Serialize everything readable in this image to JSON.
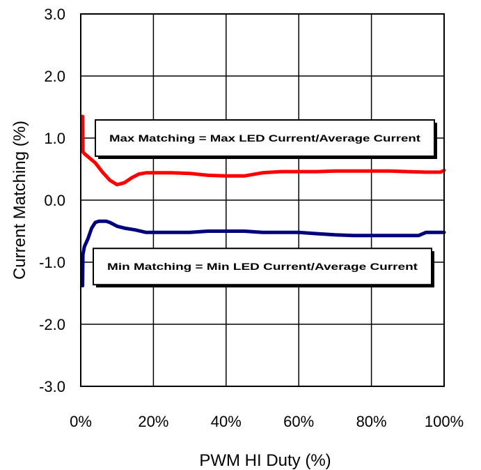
{
  "chart_data": {
    "type": "line",
    "xlabel": "PWM HI Duty (%)",
    "ylabel": "Current Matching (%)",
    "xlim": [
      0,
      100
    ],
    "ylim": [
      -3,
      3
    ],
    "x_ticks": [
      {
        "value": 0,
        "label": "0%"
      },
      {
        "value": 20,
        "label": "20%"
      },
      {
        "value": 40,
        "label": "40%"
      },
      {
        "value": 60,
        "label": "60%"
      },
      {
        "value": 80,
        "label": "80%"
      },
      {
        "value": 100,
        "label": "100%"
      }
    ],
    "y_ticks": [
      {
        "value": 3,
        "label": "3.0"
      },
      {
        "value": 2,
        "label": "2.0"
      },
      {
        "value": 1,
        "label": "1.0"
      },
      {
        "value": 0,
        "label": "0.0"
      },
      {
        "value": -1,
        "label": "-1.0"
      },
      {
        "value": -2,
        "label": "-2.0"
      },
      {
        "value": -3,
        "label": "-3.0"
      }
    ],
    "grid": true,
    "series": [
      {
        "color": "#ff0000",
        "x": [
          0.5,
          0.6,
          1,
          2,
          4,
          6,
          8,
          10,
          12,
          14,
          16,
          18,
          20,
          25,
          30,
          35,
          40,
          45,
          50,
          55,
          60,
          65,
          70,
          75,
          80,
          85,
          90,
          95,
          99,
          100
        ],
        "y": [
          1.35,
          0.78,
          0.75,
          0.7,
          0.6,
          0.45,
          0.32,
          0.25,
          0.28,
          0.36,
          0.42,
          0.44,
          0.44,
          0.44,
          0.43,
          0.4,
          0.39,
          0.39,
          0.44,
          0.46,
          0.46,
          0.46,
          0.47,
          0.47,
          0.47,
          0.47,
          0.46,
          0.45,
          0.45,
          0.48
        ]
      },
      {
        "color": "#00007f",
        "x": [
          0.5,
          0.6,
          1,
          2,
          3,
          4,
          5,
          6,
          7,
          8,
          10,
          12,
          15,
          18,
          20,
          25,
          30,
          35,
          40,
          45,
          50,
          55,
          60,
          65,
          70,
          75,
          80,
          85,
          90,
          93,
          95,
          100
        ],
        "y": [
          -1.38,
          -0.88,
          -0.75,
          -0.62,
          -0.45,
          -0.36,
          -0.34,
          -0.34,
          -0.34,
          -0.36,
          -0.42,
          -0.45,
          -0.48,
          -0.52,
          -0.52,
          -0.52,
          -0.52,
          -0.5,
          -0.5,
          -0.5,
          -0.52,
          -0.52,
          -0.52,
          -0.54,
          -0.56,
          -0.57,
          -0.57,
          -0.57,
          -0.57,
          -0.57,
          -0.52,
          -0.52
        ]
      }
    ],
    "legend_boxes": [
      {
        "text": "Max Matching = Max LED Current/Average Current",
        "anchor_y": 1.0
      },
      {
        "text": "Min Matching = Min LED Current/Average Current",
        "anchor_y": -1.07
      }
    ]
  }
}
